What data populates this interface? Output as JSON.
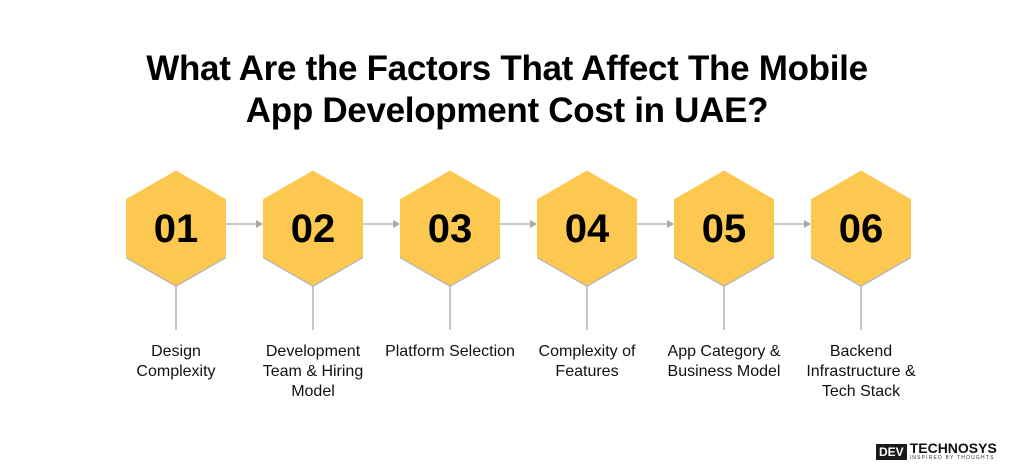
{
  "title_line1": "What Are the Factors That Affect The Mobile",
  "title_line2": "App Development Cost in UAE?",
  "colors": {
    "hexagon": "#FCC850",
    "connector": "#A8A8A8",
    "text": "#000000"
  },
  "steps": [
    {
      "number": "01",
      "label": "Design Complexity"
    },
    {
      "number": "02",
      "label": "Development Team & Hiring Model"
    },
    {
      "number": "03",
      "label": "Platform Selection"
    },
    {
      "number": "04",
      "label": "Complexity of Features"
    },
    {
      "number": "05",
      "label": "App Category & Business Model"
    },
    {
      "number": "06",
      "label": "Backend Infrastructure & Tech Stack"
    }
  ],
  "logo": {
    "dev": "DEV",
    "name": "TECHNOSYS",
    "tagline": "INSPIRED BY THOUGHTS"
  }
}
